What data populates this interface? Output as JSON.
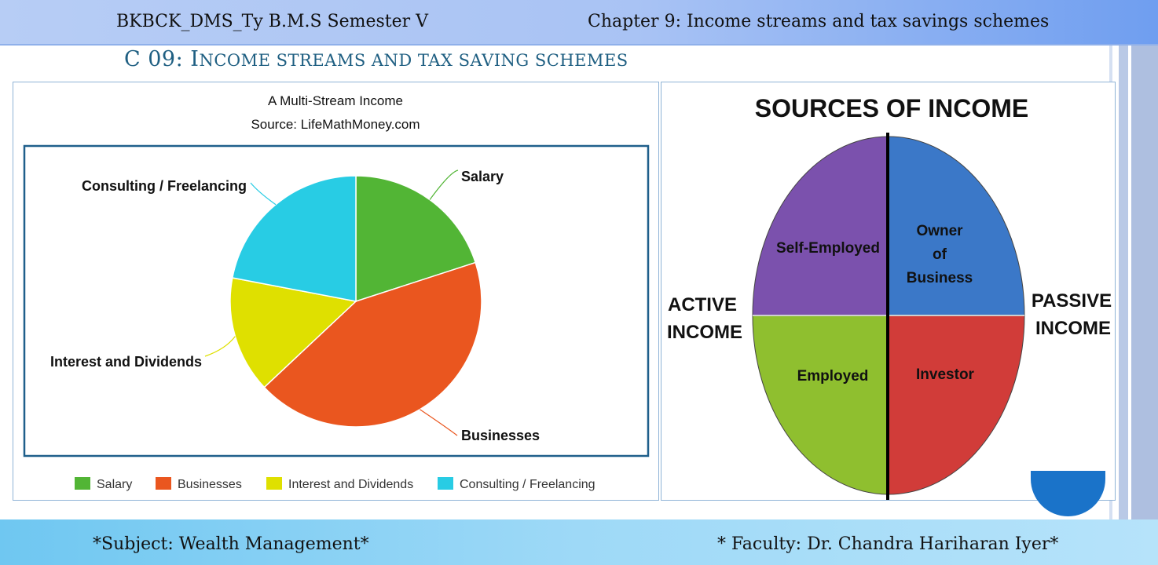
{
  "header": {
    "left_text": "BKBCK_DMS_Ty B.M.S Semester V",
    "right_text": "Chapter 9: Income streams and tax savings schemes"
  },
  "slide": {
    "title_prefix": "C 09: I",
    "title_rest": "NCOME STREAMS AND TAX SAVING SCHEMES"
  },
  "chart_data": {
    "type": "pie",
    "title": "A Multi-Stream Income",
    "subtitle": "Source: LifeMathMoney.com",
    "categories": [
      "Salary",
      "Businesses",
      "Interest and Dividends",
      "Consulting / Freelancing"
    ],
    "values": [
      20,
      43,
      15,
      22
    ],
    "colors": [
      "#52b535",
      "#ea561f",
      "#dfe000",
      "#28cce4"
    ],
    "legend": "bottom"
  },
  "diagram": {
    "title": "SOURCES OF INCOME",
    "quadrants": [
      {
        "label": "Self-Employed",
        "color": "#7b51ad"
      },
      {
        "label_lines": [
          "Owner",
          "of",
          "Business"
        ],
        "color": "#3b78c8"
      },
      {
        "label": "Employed",
        "color": "#8fbf2f"
      },
      {
        "label": "Investor",
        "color": "#d13c39"
      }
    ],
    "left_label": [
      "ACTIVE",
      "INCOME"
    ],
    "right_label": [
      "PASSIVE",
      "INCOME"
    ]
  },
  "footer": {
    "left_text": "*Subject: Wealth Management*",
    "right_text": "* Faculty: Dr. Chandra Hariharan Iyer*"
  }
}
